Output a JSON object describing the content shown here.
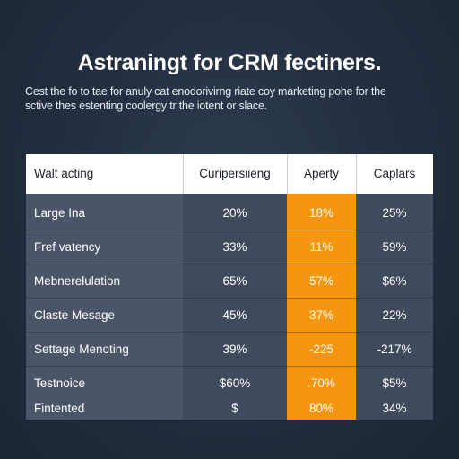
{
  "header": {
    "title": "Astraningt for CRM fectiners.",
    "subtitle_line1": "Cest the fo to tae for anuly cat enodorivirng riate coy marketing pohe for the",
    "subtitle_line2": "sctive thes estenting coolergy tr the iotent or slace."
  },
  "table": {
    "columns": [
      "Walt acting",
      "Curipersiieng",
      "Aperty",
      "Caplars"
    ],
    "rows": [
      [
        "Large Ina",
        "20%",
        "18%",
        "25%"
      ],
      [
        "Fref vatency",
        "33%",
        "11%",
        "59%"
      ],
      [
        "Mebnerelulation",
        "65%",
        "57%",
        "$6%"
      ],
      [
        "Claste Mesage",
        "45%",
        "37%",
        "22%"
      ],
      [
        "Settage Menoting",
        "39%",
        "-225",
        "-217%"
      ],
      [
        "Testnoice",
        "$60%",
        ".70%",
        "$5%"
      ],
      [
        "Fintented",
        "$",
        "80%",
        "34%"
      ]
    ]
  },
  "colors": {
    "background": "#1f2a3b",
    "table_body": "#4a5668",
    "highlight_column": "#f5960e",
    "header_bg": "#ffffff"
  }
}
